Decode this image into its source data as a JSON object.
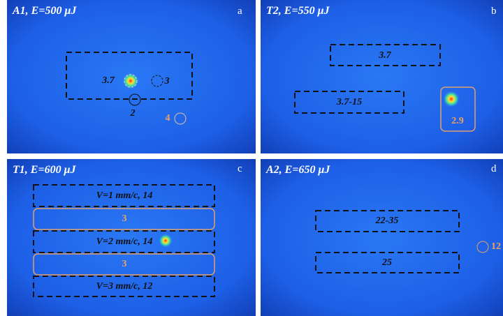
{
  "panels": [
    {
      "title": "A1, E=500 μJ",
      "letter": "a",
      "labels": [
        "3.7",
        "3",
        "2",
        "4"
      ]
    },
    {
      "title": "T2, E=550 μJ",
      "letter": "b",
      "labels": [
        "3.7",
        "3.7-15",
        "2.9"
      ]
    },
    {
      "title": "T1, E=600 μJ",
      "letter": "c",
      "labels": [
        "V=1 mm/c, 14",
        "3",
        "V=2 mm/c, 14",
        "3",
        "V=3 mm/c, 12"
      ]
    },
    {
      "title": "A2, E=650 μJ",
      "letter": "d",
      "labels": [
        "22-35",
        "25",
        "12"
      ]
    }
  ]
}
